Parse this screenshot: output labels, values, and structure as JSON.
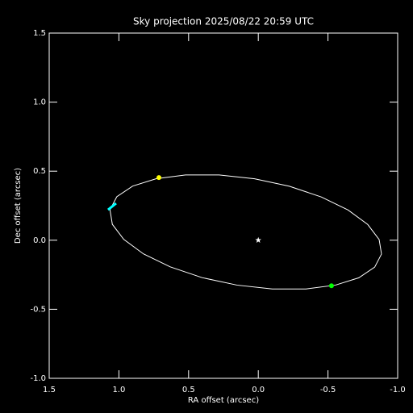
{
  "chart_data": {
    "type": "line",
    "title": "Sky projection 2025/08/22 20:59 UTC",
    "x_label": "RA offset (arcsec)",
    "y_label": "Dec offset (arcsec)",
    "xlim": [
      1.5,
      -1.0
    ],
    "ylim": [
      -1.0,
      1.5
    ],
    "xticks": [
      1.5,
      {
        "value": 1.0,
        "label": "1.0"
      },
      0.5,
      {
        "value": 0.0,
        "label": "0.0"
      },
      -0.5,
      {
        "value": -1.0,
        "label": "-1.0"
      }
    ],
    "yticks": [
      {
        "value": -1.0,
        "label": "-1.0"
      },
      -0.5,
      {
        "value": 0.0,
        "label": "0.0"
      },
      0.5,
      {
        "value": 1.0,
        "label": "1.0"
      },
      1.5
    ],
    "grid": false,
    "x": [
      -0.884,
      -0.835,
      -0.721,
      -0.554,
      -0.342,
      -0.101,
      0.153,
      0.403,
      0.632,
      0.824,
      0.965,
      1.047,
      1.064,
      1.015,
      0.901,
      0.734,
      0.522,
      0.281,
      0.027,
      -0.223,
      -0.452,
      -0.644,
      -0.785,
      -0.867,
      -0.884
    ],
    "series": [
      {
        "color": "#ffffff",
        "values": [
          -0.1,
          -0.195,
          -0.272,
          -0.325,
          -0.353,
          -0.353,
          -0.325,
          -0.271,
          -0.193,
          -0.099,
          0.006,
          0.115,
          0.22,
          0.315,
          0.392,
          0.445,
          0.473,
          0.473,
          0.445,
          0.391,
          0.313,
          0.219,
          0.114,
          0.005,
          -0.1
        ]
      }
    ],
    "markers": [
      {
        "x": 0.0,
        "y": 0.0,
        "color": "#ffffff",
        "shape": "star"
      },
      {
        "x": 0.713,
        "y": 0.454,
        "color": "#ffff00",
        "shape": "dot"
      },
      {
        "x": -0.525,
        "y": -0.33,
        "color": "#00ff00",
        "shape": "dot"
      },
      {
        "x": 1.049,
        "y": 0.244,
        "color": "#00ffff",
        "shape": "dash"
      }
    ]
  }
}
